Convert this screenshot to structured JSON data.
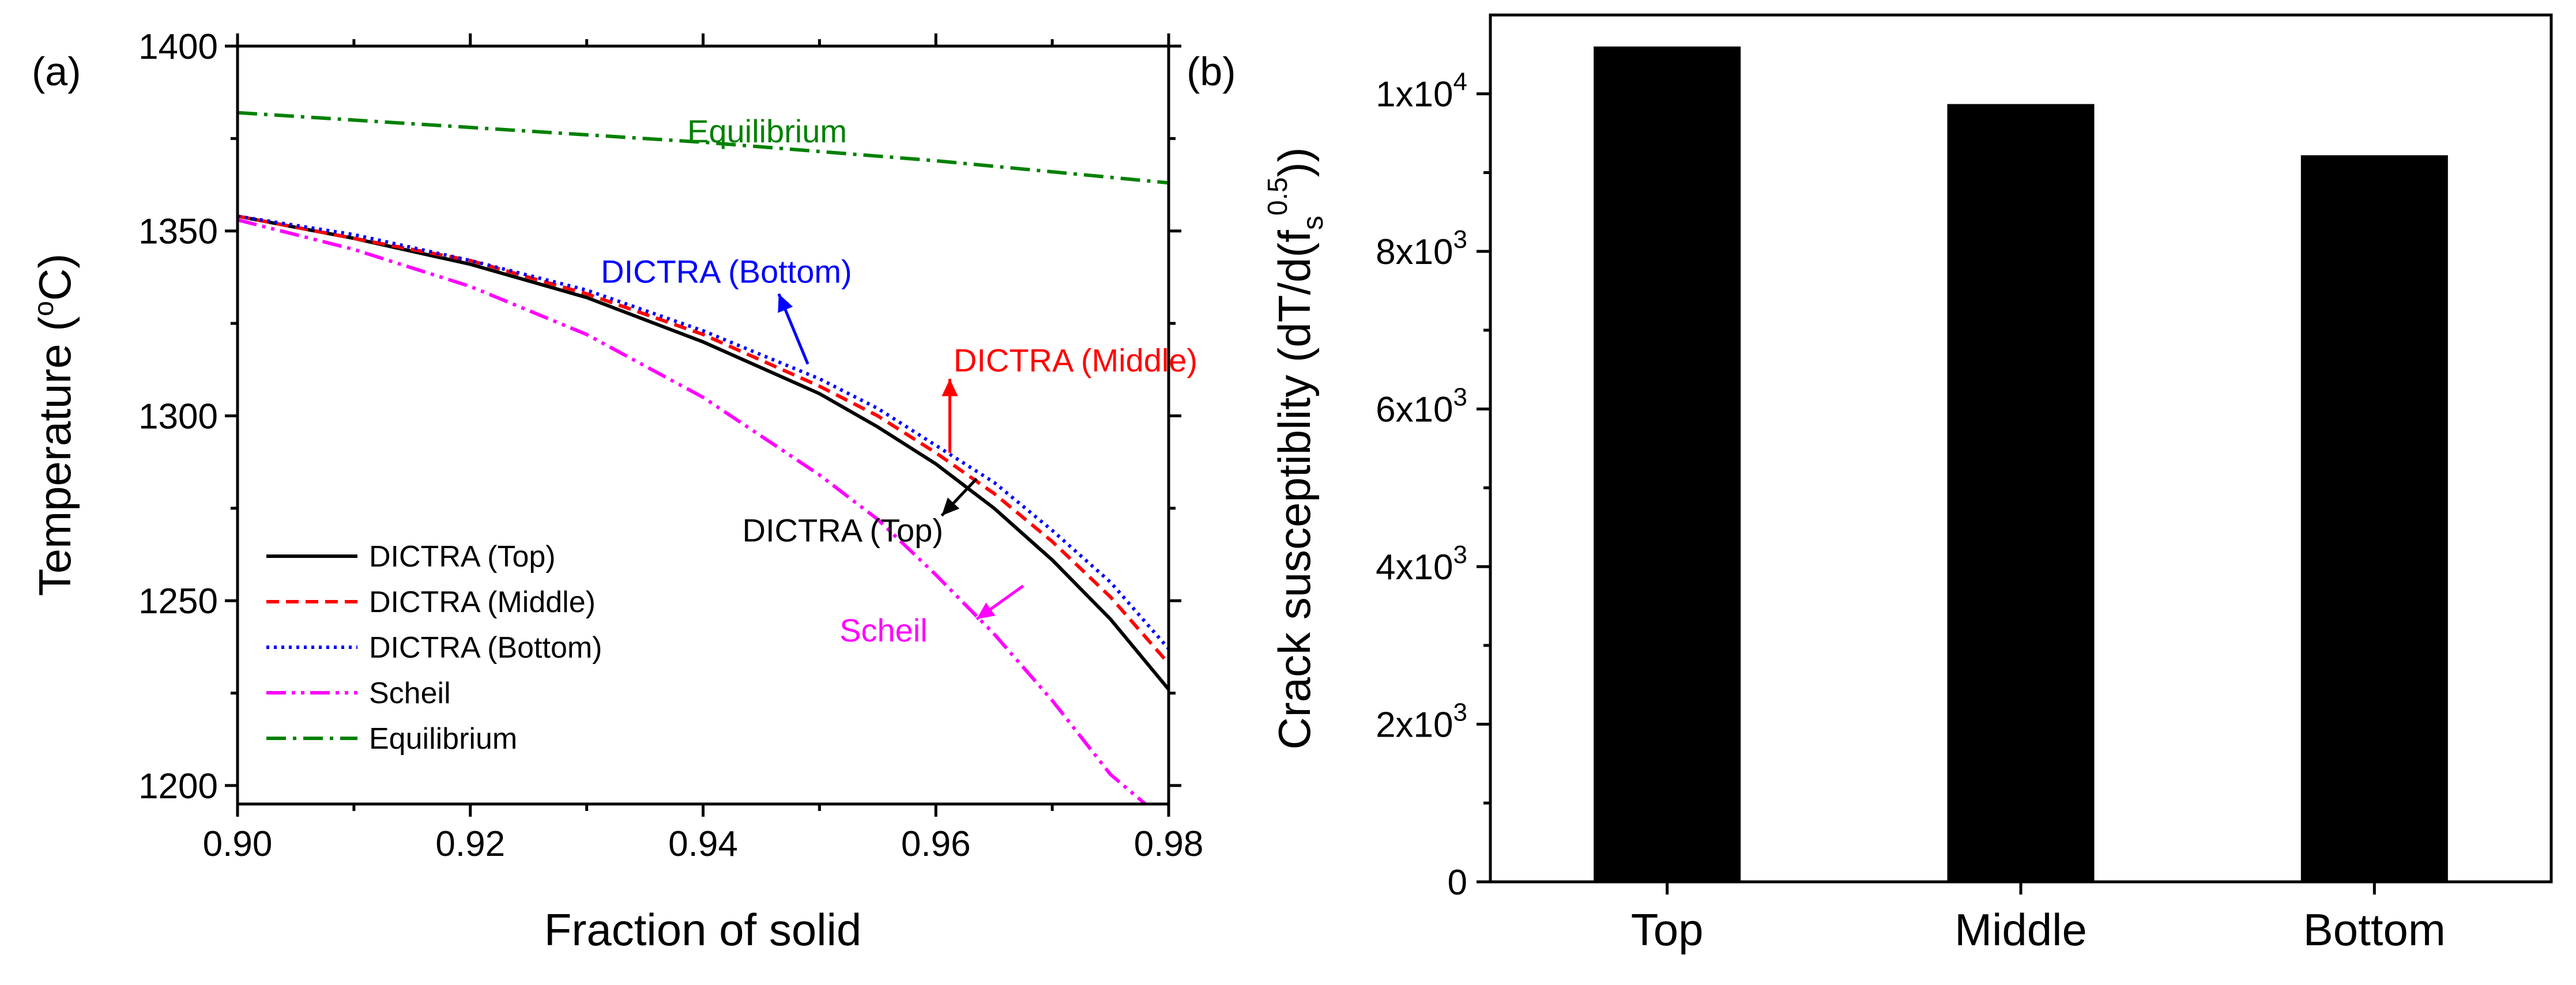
{
  "panel_labels": [
    "(a)",
    "(b)"
  ],
  "chart_data": [
    {
      "type": "line",
      "xlabel": "Fraction of solid",
      "ylabel": "Temperature (",
      "ylabel_sup": "o",
      "ylabel_tail": "C)",
      "xlim": [
        0.9,
        0.98
      ],
      "ylim": [
        1195,
        1400
      ],
      "x_ticks": [
        "0.90",
        "0.92",
        "0.94",
        "0.96",
        "0.98"
      ],
      "y_ticks": [
        "1200",
        "1250",
        "1300",
        "1350",
        "1400"
      ],
      "legend_position": "bottom-left",
      "series": [
        {
          "name": "DICTRA (Top)",
          "color": "#000000",
          "style": "solid",
          "points": [
            [
              0.9,
              1354
            ],
            [
              0.91,
              1348
            ],
            [
              0.92,
              1341
            ],
            [
              0.93,
              1332
            ],
            [
              0.94,
              1320
            ],
            [
              0.95,
              1306
            ],
            [
              0.955,
              1297
            ],
            [
              0.96,
              1287
            ],
            [
              0.965,
              1275
            ],
            [
              0.97,
              1261
            ],
            [
              0.975,
              1245
            ],
            [
              0.98,
              1226
            ]
          ]
        },
        {
          "name": "DICTRA (Middle)",
          "color": "#ff0000",
          "style": "dashed",
          "points": [
            [
              0.9,
              1354
            ],
            [
              0.91,
              1348
            ],
            [
              0.92,
              1342
            ],
            [
              0.93,
              1333
            ],
            [
              0.94,
              1322
            ],
            [
              0.95,
              1308
            ],
            [
              0.955,
              1300
            ],
            [
              0.96,
              1290
            ],
            [
              0.965,
              1279
            ],
            [
              0.97,
              1266
            ],
            [
              0.975,
              1251
            ],
            [
              0.98,
              1233
            ]
          ]
        },
        {
          "name": "DICTRA (Bottom)",
          "color": "#0000ff",
          "style": "dotted",
          "points": [
            [
              0.9,
              1354
            ],
            [
              0.91,
              1349
            ],
            [
              0.92,
              1342
            ],
            [
              0.93,
              1334
            ],
            [
              0.94,
              1323
            ],
            [
              0.95,
              1310
            ],
            [
              0.955,
              1302
            ],
            [
              0.96,
              1292
            ],
            [
              0.965,
              1282
            ],
            [
              0.97,
              1269
            ],
            [
              0.975,
              1255
            ],
            [
              0.98,
              1237
            ]
          ]
        },
        {
          "name": "Scheil",
          "color": "#ff00ff",
          "style": "dashdotdot",
          "points": [
            [
              0.9,
              1353
            ],
            [
              0.91,
              1345
            ],
            [
              0.92,
              1335
            ],
            [
              0.93,
              1322
            ],
            [
              0.94,
              1305
            ],
            [
              0.95,
              1284
            ],
            [
              0.955,
              1272
            ],
            [
              0.96,
              1257
            ],
            [
              0.965,
              1241
            ],
            [
              0.97,
              1223
            ],
            [
              0.975,
              1203
            ],
            [
              0.978,
              1195
            ]
          ]
        },
        {
          "name": "Equilibrium",
          "color": "#008000",
          "style": "dashdot",
          "points": [
            [
              0.9,
              1382
            ],
            [
              0.92,
              1378
            ],
            [
              0.94,
              1374
            ],
            [
              0.96,
              1369
            ],
            [
              0.98,
              1363
            ]
          ]
        }
      ],
      "annotations": [
        {
          "text": "Equilibrium",
          "color": "#008000",
          "x": 0.9455,
          "y": 1374,
          "arrow": null
        },
        {
          "text": "DICTRA (Bottom)",
          "color": "#0000ff",
          "x": 0.942,
          "y": 1336,
          "arrow": [
            [
              0.949,
              1314
            ],
            [
              0.9465,
              1333
            ]
          ]
        },
        {
          "text": "DICTRA (Middle)",
          "color": "#ff0000",
          "x": 0.972,
          "y": 1312,
          "arrow": [
            [
              0.9612,
              1290
            ],
            [
              0.9612,
              1310
            ]
          ]
        },
        {
          "text": "DICTRA (Top)",
          "color": "#000000",
          "x": 0.952,
          "y": 1266,
          "arrow": [
            [
              0.9635,
              1283
            ],
            [
              0.9605,
              1273
            ]
          ]
        },
        {
          "text": "Scheil",
          "color": "#ff00ff",
          "x": 0.9555,
          "y": 1239,
          "arrow": [
            [
              0.9675,
              1254
            ],
            [
              0.9635,
              1245
            ]
          ]
        }
      ]
    },
    {
      "type": "bar",
      "categories": [
        "Top",
        "Middle",
        "Bottom"
      ],
      "values": [
        10600,
        9870,
        9220
      ],
      "color": "#000000",
      "ylabel": "Crack susceptiblity (dT/d(f",
      "ylabel_sub": "s",
      "ylabel_sup": "0.5",
      "ylabel_tail": "))",
      "ylim": [
        0,
        11000
      ],
      "y_ticks": [
        {
          "value": 0,
          "base": "0",
          "exp": ""
        },
        {
          "value": 2000,
          "base": "2x10",
          "exp": "3"
        },
        {
          "value": 4000,
          "base": "4x10",
          "exp": "3"
        },
        {
          "value": 6000,
          "base": "6x10",
          "exp": "3"
        },
        {
          "value": 8000,
          "base": "8x10",
          "exp": "3"
        },
        {
          "value": 10000,
          "base": "1x10",
          "exp": "4"
        }
      ]
    }
  ]
}
